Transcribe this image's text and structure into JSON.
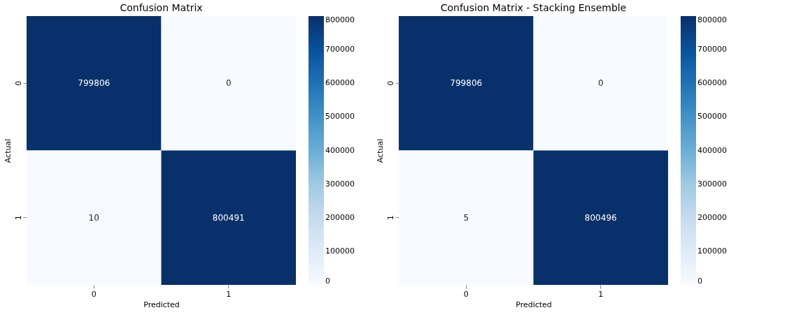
{
  "chart_data": [
    {
      "type": "heatmap",
      "title": "Confusion Matrix",
      "xlabel": "Predicted",
      "ylabel": "Actual",
      "categories": [
        "0",
        "1"
      ],
      "y_categories": [
        "0",
        "1"
      ],
      "cells": [
        [
          799806,
          0
        ],
        [
          10,
          800491
        ]
      ],
      "data_labels": true,
      "clim": [
        0,
        800000
      ],
      "cticks": [
        0,
        100000,
        200000,
        300000,
        400000,
        500000,
        600000,
        700000,
        800000
      ]
    },
    {
      "type": "heatmap",
      "title": "Confusion Matrix - Stacking Ensemble",
      "xlabel": "Predicted",
      "ylabel": "Actual",
      "categories": [
        "0",
        "1"
      ],
      "y_categories": [
        "0",
        "1"
      ],
      "cells": [
        [
          799806,
          0
        ],
        [
          5,
          800496
        ]
      ],
      "data_labels": true,
      "clim": [
        0,
        800000
      ],
      "cticks": [
        0,
        100000,
        200000,
        300000,
        400000,
        500000,
        600000,
        700000,
        800000
      ]
    }
  ]
}
